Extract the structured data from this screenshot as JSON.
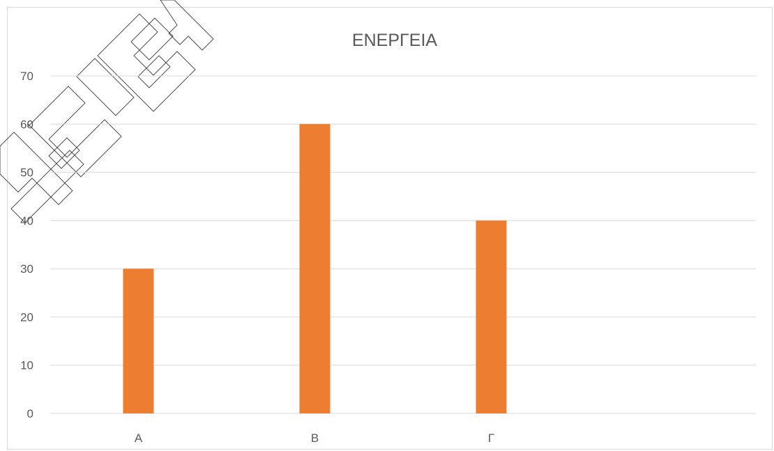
{
  "colors": {
    "bar": "#ED7D31",
    "gridline": "#d9d9d9",
    "text": "#595959",
    "background": "#ffffff"
  },
  "watermark": {
    "text": "ΚΛΙΩΤΗΣ"
  },
  "chart_data": {
    "type": "bar",
    "title": "ΕΝΕΡΓΕΙΑ",
    "categories": [
      "Α",
      "Β",
      "Γ",
      ""
    ],
    "values": [
      30,
      60,
      40,
      null
    ],
    "xlabel": "",
    "ylabel": "",
    "ylim": [
      0,
      70
    ],
    "yticks": [
      "0",
      "10",
      "20",
      "30",
      "40",
      "50",
      "60",
      "70"
    ],
    "grid": true,
    "legend": "none"
  }
}
